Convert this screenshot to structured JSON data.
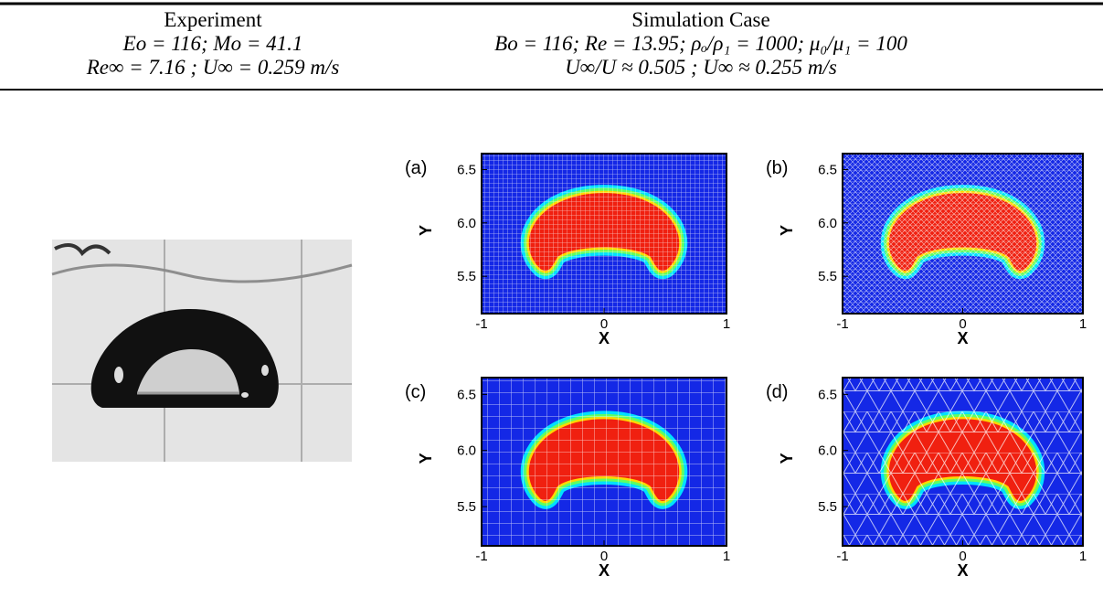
{
  "header": {
    "experiment": {
      "title": "Experiment",
      "lines": [
        "Eo = 116;  Mo = 41.1",
        "Re∞ = 7.16 ;  U∞ = 0.259 m/s"
      ]
    },
    "simulation": {
      "title": "Simulation Case",
      "lines": [
        "Bo = 116;  Re = 13.95;  ρₒ/ρ₁ = 1000;  μ₀/μ₁ = 100",
        "U∞/U ≈ 0.505 ;  U∞ ≈ 0.255 m/s"
      ]
    }
  },
  "panels": [
    {
      "label": "(a)",
      "x_label": "X",
      "y_label": "Y",
      "xticks": [
        "-1",
        "0",
        "1"
      ],
      "yticks": [
        "6.5",
        "6.0",
        "5.5"
      ]
    },
    {
      "label": "(b)",
      "x_label": "X",
      "y_label": "Y",
      "xticks": [
        "-1",
        "0",
        "1"
      ],
      "yticks": [
        "6.5",
        "6.0",
        "5.5"
      ]
    },
    {
      "label": "(c)",
      "x_label": "X",
      "y_label": "Y",
      "xticks": [
        "-1",
        "0",
        "1"
      ],
      "yticks": [
        "6.5",
        "6.0",
        "5.5"
      ]
    },
    {
      "label": "(d)",
      "x_label": "X",
      "y_label": "Y",
      "xticks": [
        "-1",
        "0",
        "1"
      ],
      "yticks": [
        "6.5",
        "6.0",
        "5.5"
      ]
    }
  ]
}
